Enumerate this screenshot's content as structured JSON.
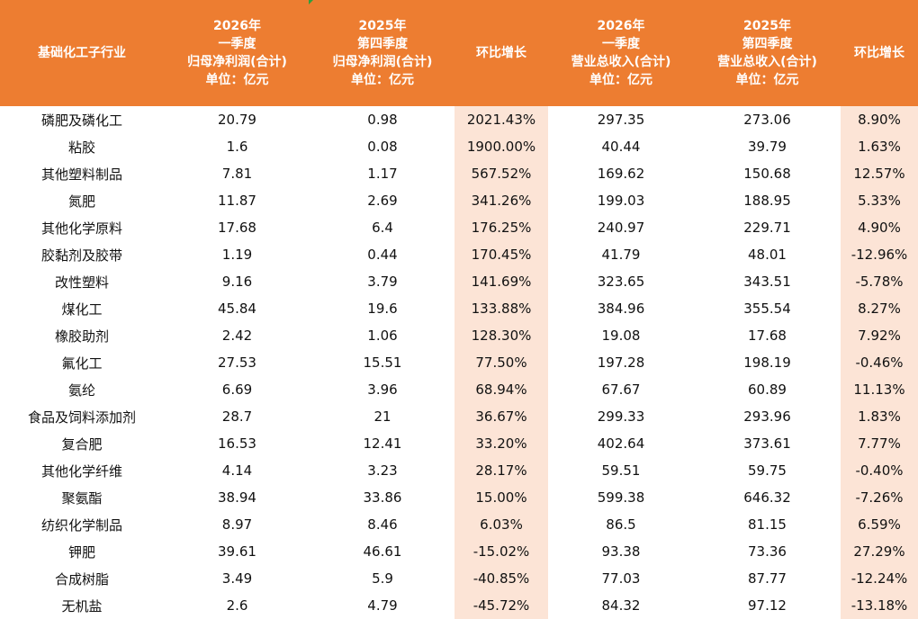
{
  "colors": {
    "header_bg": "#ED7D31",
    "header_text": "#FFFFFF",
    "shaded_col": "#FCE4D6"
  },
  "headers": [
    {
      "lines": [
        "基础化工子行业"
      ]
    },
    {
      "lines": [
        "2026年",
        "一季度",
        "归母净利润(合计)",
        "单位：亿元"
      ]
    },
    {
      "lines": [
        "2025年",
        "第四季度",
        "归母净利润(合计)",
        "单位：亿元"
      ]
    },
    {
      "lines": [
        "环比增长"
      ]
    },
    {
      "lines": [
        "2026年",
        "一季度",
        "营业总收入(合计)",
        "单位：亿元"
      ]
    },
    {
      "lines": [
        "2025年",
        "第四季度",
        "营业总收入(合计)",
        "单位：亿元"
      ]
    },
    {
      "lines": [
        "环比增长"
      ]
    }
  ],
  "rows": [
    [
      "磷肥及磷化工",
      "20.79",
      "0.98",
      "2021.43%",
      "297.35",
      "273.06",
      "8.90%"
    ],
    [
      "粘胶",
      "1.6",
      "0.08",
      "1900.00%",
      "40.44",
      "39.79",
      "1.63%"
    ],
    [
      "其他塑料制品",
      "7.81",
      "1.17",
      "567.52%",
      "169.62",
      "150.68",
      "12.57%"
    ],
    [
      "氮肥",
      "11.87",
      "2.69",
      "341.26%",
      "199.03",
      "188.95",
      "5.33%"
    ],
    [
      "其他化学原料",
      "17.68",
      "6.4",
      "176.25%",
      "240.97",
      "229.71",
      "4.90%"
    ],
    [
      "胶黏剂及胶带",
      "1.19",
      "0.44",
      "170.45%",
      "41.79",
      "48.01",
      "-12.96%"
    ],
    [
      "改性塑料",
      "9.16",
      "3.79",
      "141.69%",
      "323.65",
      "343.51",
      "-5.78%"
    ],
    [
      "煤化工",
      "45.84",
      "19.6",
      "133.88%",
      "384.96",
      "355.54",
      "8.27%"
    ],
    [
      "橡胶助剂",
      "2.42",
      "1.06",
      "128.30%",
      "19.08",
      "17.68",
      "7.92%"
    ],
    [
      "氟化工",
      "27.53",
      "15.51",
      "77.50%",
      "197.28",
      "198.19",
      "-0.46%"
    ],
    [
      "氨纶",
      "6.69",
      "3.96",
      "68.94%",
      "67.67",
      "60.89",
      "11.13%"
    ],
    [
      "食品及饲料添加剂",
      "28.7",
      "21",
      "36.67%",
      "299.33",
      "293.96",
      "1.83%"
    ],
    [
      "复合肥",
      "16.53",
      "12.41",
      "33.20%",
      "402.64",
      "373.61",
      "7.77%"
    ],
    [
      "其他化学纤维",
      "4.14",
      "3.23",
      "28.17%",
      "59.51",
      "59.75",
      "-0.40%"
    ],
    [
      "聚氨酯",
      "38.94",
      "33.86",
      "15.00%",
      "599.38",
      "646.32",
      "-7.26%"
    ],
    [
      "纺织化学制品",
      "8.97",
      "8.46",
      "6.03%",
      "86.5",
      "81.15",
      "6.59%"
    ],
    [
      "钾肥",
      "39.61",
      "46.61",
      "-15.02%",
      "93.38",
      "73.36",
      "27.29%"
    ],
    [
      "合成树脂",
      "3.49",
      "5.9",
      "-40.85%",
      "77.03",
      "87.77",
      "-12.24%"
    ],
    [
      "无机盐",
      "2.6",
      "4.79",
      "-45.72%",
      "84.32",
      "97.12",
      "-13.18%"
    ]
  ]
}
